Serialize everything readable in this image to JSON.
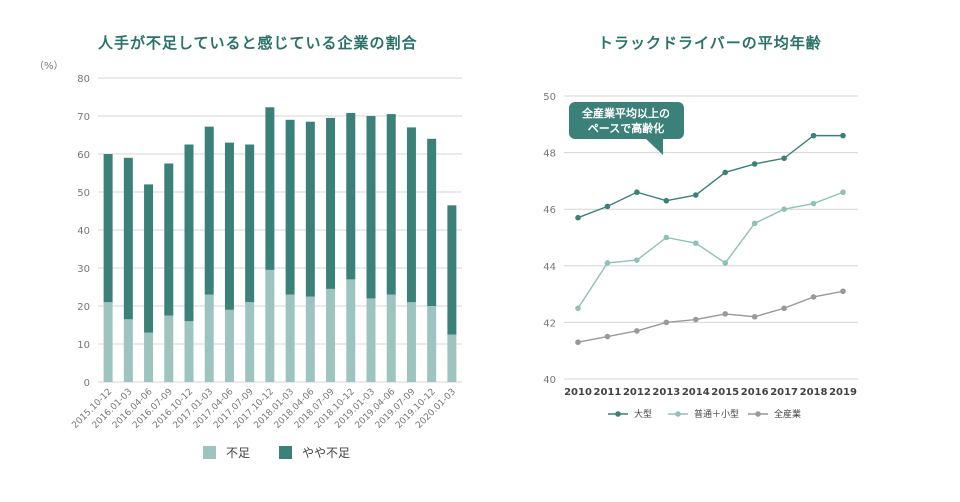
{
  "chart_data": [
    {
      "type": "bar",
      "stacked": true,
      "title": "人手が不足していると感じている企業の割合",
      "ylabel": "（%）",
      "ylim": [
        0,
        80
      ],
      "yticks": [
        0,
        10,
        20,
        30,
        40,
        50,
        60,
        70,
        80
      ],
      "grid": true,
      "categories": [
        "2015.10-12",
        "2016.01-03",
        "2016.04-06",
        "2016.07-09",
        "2016.10-12",
        "2017.01-03",
        "2017.04-06",
        "2017.07-09",
        "2017.10-12",
        "2018.01-03",
        "2018.04-06",
        "2018.07-09",
        "2018.10-12",
        "2019.01-03",
        "2019.04-06",
        "2019.07-09",
        "2019.10-12",
        "2020.01-03"
      ],
      "series": [
        {
          "name": "不足",
          "color": "#9dc4bf",
          "values": [
            21,
            16.5,
            13,
            17.5,
            16,
            23,
            19,
            21,
            29.5,
            23,
            22.5,
            24.5,
            27,
            22,
            23,
            21,
            20,
            12.5
          ]
        },
        {
          "name": "やや不足",
          "color": "#3b8179",
          "values": [
            39,
            42.5,
            39,
            40,
            46.5,
            44.2,
            44,
            41.5,
            42.8,
            46,
            46,
            45,
            43.8,
            48,
            47.5,
            46,
            44,
            34
          ]
        }
      ],
      "legend": "bottom"
    },
    {
      "type": "line",
      "title": "トラックドライバーの平均年齢",
      "ylim": [
        40,
        50
      ],
      "yticks": [
        40,
        42,
        44,
        46,
        48,
        50
      ],
      "grid": true,
      "x": [
        "2010",
        "2011",
        "2012",
        "2013",
        "2014",
        "2015",
        "2016",
        "2017",
        "2018",
        "2019"
      ],
      "series": [
        {
          "name": "大型",
          "color": "#3b8179",
          "values": [
            45.7,
            46.1,
            46.6,
            46.3,
            46.5,
            47.3,
            47.6,
            47.8,
            48.6,
            48.6
          ]
        },
        {
          "name": "普通＋小型",
          "color": "#8fc1b9",
          "values": [
            42.5,
            44.1,
            44.2,
            45.0,
            44.8,
            44.1,
            45.5,
            46.0,
            46.2,
            46.6
          ]
        },
        {
          "name": "全産業",
          "color": "#999999",
          "values": [
            41.3,
            41.5,
            41.7,
            42.0,
            42.1,
            42.3,
            42.2,
            42.5,
            42.9,
            43.1
          ]
        }
      ],
      "annotation": [
        "全産業平均以上の",
        "ペースで高齢化"
      ],
      "legend": "bottom"
    }
  ]
}
